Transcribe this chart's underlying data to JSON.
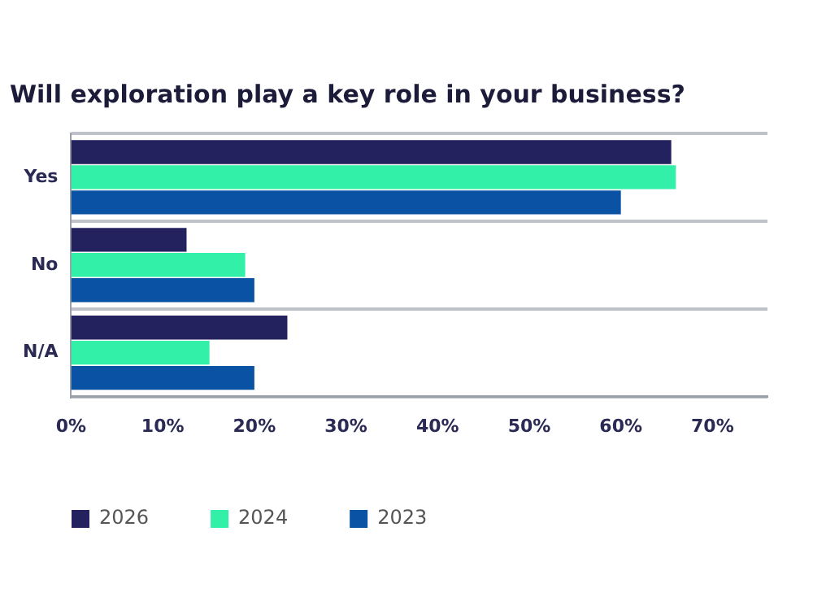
{
  "chart_data": {
    "type": "bar",
    "orientation": "horizontal",
    "title": "Will exploration play a key role in your business?",
    "categories": [
      "Yes",
      "No",
      "N/A"
    ],
    "series": [
      {
        "name": "2026",
        "color": "#23215e",
        "values": [
          65.5,
          12.6,
          23.6
        ]
      },
      {
        "name": "2024",
        "color": "#33f0a8",
        "values": [
          66,
          19,
          15.1
        ]
      },
      {
        "name": "2023",
        "color": "#0a52a3",
        "values": [
          60,
          20,
          20
        ]
      }
    ],
    "xlim": [
      0,
      76
    ],
    "xticks": [
      {
        "value": 0,
        "label": "0%"
      },
      {
        "value": 10,
        "label": "10%"
      },
      {
        "value": 20,
        "label": "20%"
      },
      {
        "value": 30,
        "label": "30%"
      },
      {
        "value": 40,
        "label": "40%"
      },
      {
        "value": 50,
        "label": "50%"
      },
      {
        "value": 60,
        "label": "60%"
      },
      {
        "value": 70,
        "label": "70%"
      }
    ],
    "grid": "y",
    "legend": "bottom left"
  }
}
